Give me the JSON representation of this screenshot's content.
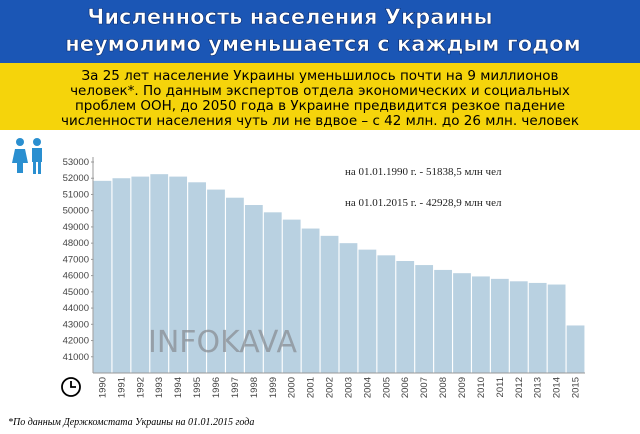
{
  "header": {
    "title_lines": [
      "Численность населения Украины",
      "неумолимо уменьшается с каждым годом"
    ],
    "subtitle_lines": [
      "За 25 лет население Украины уменьшилось почти на 9 миллионов",
      "человек*.  По данным экспертов отдела экономических и социальных",
      "проблем  ООН, до 2050 года в Украине предвидится резкое падение",
      "численности  населения чуть ли не вдвое – с 42 млн. до 26 млн. человек"
    ]
  },
  "chart_data": {
    "type": "bar",
    "categories": [
      "1990",
      "1991",
      "1992",
      "1993",
      "1994",
      "1995",
      "1996",
      "1997",
      "1998",
      "1999",
      "2000",
      "2001",
      "2002",
      "2003",
      "2004",
      "2005",
      "2006",
      "2007",
      "2008",
      "2009",
      "2010",
      "2011",
      "2012",
      "2013",
      "2014",
      "2015"
    ],
    "values": [
      51838.5,
      52000,
      52100,
      52250,
      52100,
      51750,
      51300,
      50800,
      50350,
      49900,
      49450,
      48900,
      48450,
      48000,
      47600,
      47250,
      46900,
      46650,
      46350,
      46150,
      45950,
      45800,
      45650,
      45550,
      45450,
      42928.9
    ],
    "color": "#b9d1e1",
    "ylim": [
      40000,
      53000
    ],
    "yticks": [
      41000,
      42000,
      43000,
      44000,
      45000,
      46000,
      47000,
      48000,
      49000,
      50000,
      51000,
      52000,
      53000
    ],
    "annotations": [
      "на 01.01.1990 г. - 51838,5 млн чел",
      "на 01.01.2015 г. - 42928,9 млн чел"
    ],
    "watermark": "INFOKAVA"
  },
  "footnote": "*По данным Держкомстата Украины на 01.01.2015 года"
}
